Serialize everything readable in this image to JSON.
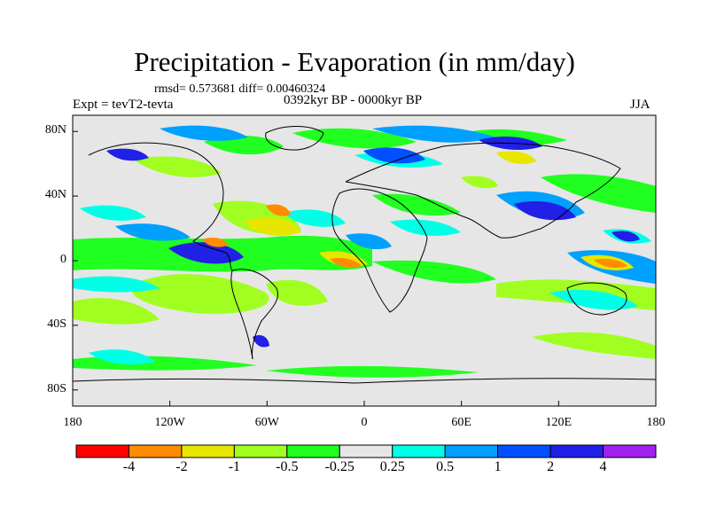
{
  "title": "Precipitation - Evaporation (in mm/day)",
  "stats": "rmsd= 0.573681 diff= 0.00460324",
  "experiment": "Expt = tevT2-tevta",
  "period": "0392kyr BP - 0000kyr BP",
  "season": "JJA",
  "map": {
    "projection": "cylindrical equidistant",
    "background_color": "#e6e6e6",
    "lon_ticks": [
      "180",
      "120W",
      "60W",
      "0",
      "60E",
      "120E",
      "180"
    ],
    "lat_ticks": [
      "80N",
      "40N",
      "0",
      "40S",
      "80S"
    ]
  },
  "colorbar": {
    "labels": [
      "-4",
      "-2",
      "-1",
      "-0.5",
      "-0.25",
      "0.25",
      "0.5",
      "1",
      "2",
      "4"
    ],
    "colors": [
      "#ff0000",
      "#ff8c00",
      "#e6e600",
      "#a0ff20",
      "#20ff20",
      "#e6e6e6",
      "#00ffe6",
      "#00a0ff",
      "#0050ff",
      "#2020e6",
      "#a020f0"
    ]
  },
  "anomalies": [
    {
      "level": 4,
      "note": "strong wet Pacific ITCZ near Central America"
    },
    {
      "level": 3,
      "note": "wet east Asia monsoon / west Pacific"
    },
    {
      "level": -3,
      "note": "dry equatorial Atlantic"
    },
    {
      "level": -3,
      "note": "dry west Pacific warm pool"
    }
  ]
}
